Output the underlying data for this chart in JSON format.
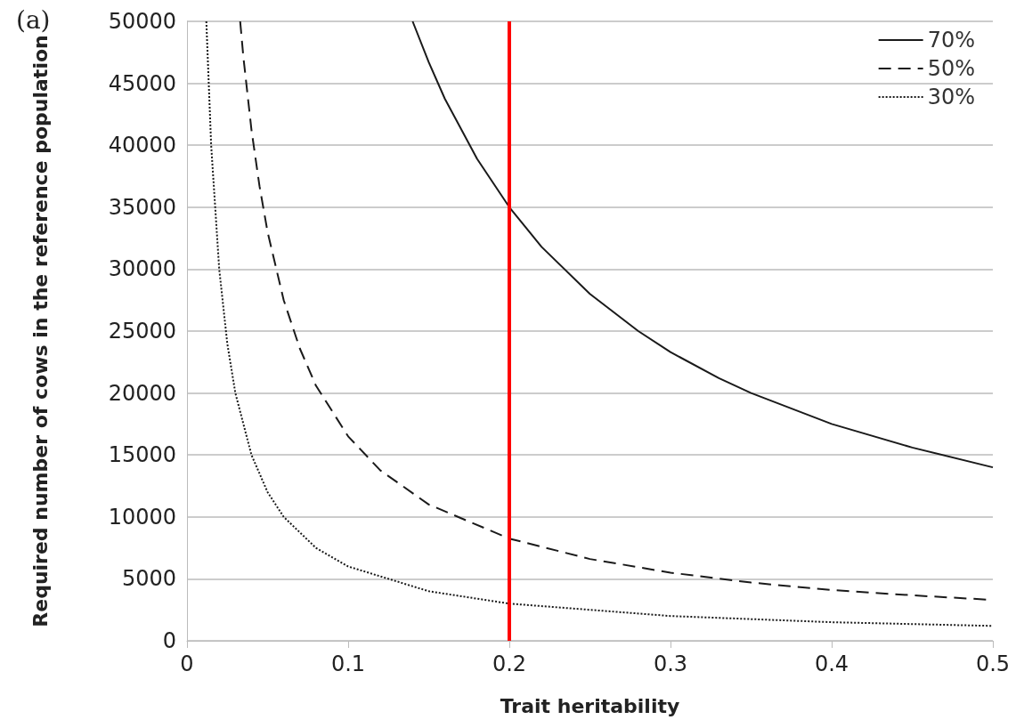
{
  "chart_data": {
    "type": "line",
    "xlabel": "Trait heritability",
    "ylabel": "Required number of cows in the reference population",
    "annotations": [
      "(a)"
    ],
    "xlim": [
      0,
      0.5
    ],
    "xticks": [
      0,
      0.1,
      0.2,
      0.3,
      0.4,
      0.5
    ],
    "ylim": [
      0,
      50000
    ],
    "yticks": [
      0,
      5000,
      10000,
      15000,
      20000,
      25000,
      30000,
      35000,
      40000,
      45000,
      50000
    ],
    "grid": "y",
    "legend": "top right",
    "marker": "none",
    "ref_lines": [
      {
        "axis": "x",
        "value": 0.2,
        "color": "#ff0000"
      }
    ],
    "series": [
      {
        "name": "70%",
        "color": "#1a1a1a",
        "line_style": "solid",
        "x": [
          0.14,
          0.15,
          0.16,
          0.18,
          0.2,
          0.22,
          0.25,
          0.28,
          0.3,
          0.33,
          0.35,
          0.4,
          0.45,
          0.5
        ],
        "values": [
          50000,
          46700,
          43750,
          38900,
          35000,
          31800,
          28000,
          25000,
          23300,
          21200,
          20000,
          17500,
          15600,
          14000
        ]
      },
      {
        "name": "50%",
        "color": "#1a1a1a",
        "line_style": "dashed",
        "x": [
          0.033,
          0.035,
          0.04,
          0.045,
          0.05,
          0.06,
          0.07,
          0.08,
          0.1,
          0.12,
          0.15,
          0.2,
          0.25,
          0.3,
          0.35,
          0.4,
          0.45,
          0.5
        ],
        "values": [
          50000,
          47100,
          41250,
          36700,
          33000,
          27500,
          23600,
          20600,
          16500,
          13750,
          11000,
          8250,
          6600,
          5500,
          4700,
          4100,
          3670,
          3300
        ]
      },
      {
        "name": "30%",
        "color": "#1a1a1a",
        "line_style": "dotted",
        "x": [
          0.012,
          0.015,
          0.02,
          0.025,
          0.03,
          0.04,
          0.05,
          0.06,
          0.08,
          0.1,
          0.15,
          0.2,
          0.3,
          0.4,
          0.5
        ],
        "values": [
          50000,
          40000,
          30000,
          24000,
          20000,
          15000,
          12000,
          10000,
          7500,
          6000,
          4000,
          3000,
          2000,
          1500,
          1200
        ]
      }
    ]
  }
}
